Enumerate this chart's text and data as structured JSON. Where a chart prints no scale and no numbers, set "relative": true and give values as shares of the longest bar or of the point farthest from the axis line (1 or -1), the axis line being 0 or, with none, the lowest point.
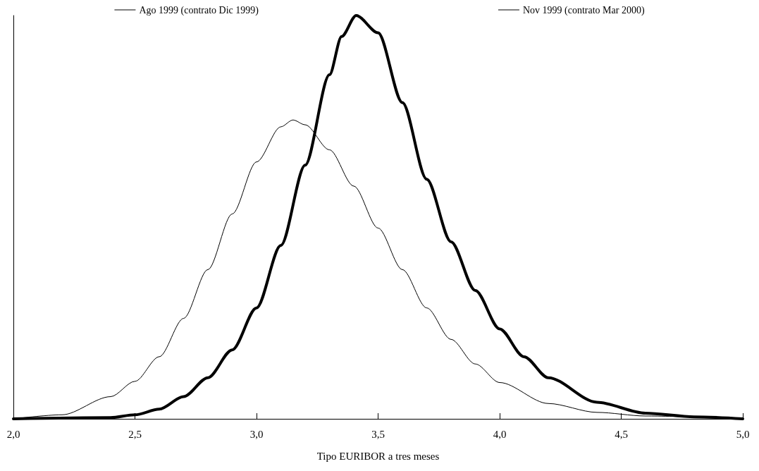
{
  "chart_data": {
    "type": "line",
    "xlabel": "Tipo EURIBOR a tres meses",
    "relative": true,
    "legend": "top",
    "grid": false,
    "marker": "none",
    "xlim": [
      2,
      5
    ],
    "xticks": [
      {
        "value": 2,
        "label": "2,0"
      },
      {
        "value": 2.5,
        "label": "2,5"
      },
      {
        "value": 3,
        "label": "3,0"
      },
      {
        "value": 3.5,
        "label": "3,5"
      },
      {
        "value": 4,
        "label": "4,0"
      },
      {
        "value": 4.5,
        "label": "4,5"
      },
      {
        "value": 5,
        "label": "5,0"
      }
    ],
    "series": [
      {
        "name": "Ago 1999 (contrato Dic 1999)",
        "color": "#000000",
        "x": [
          2.0,
          2.2,
          2.4,
          2.5,
          2.6,
          2.7,
          2.8,
          2.9,
          3.0,
          3.1,
          3.15,
          3.2,
          3.3,
          3.4,
          3.5,
          3.6,
          3.7,
          3.8,
          3.9,
          4.0,
          4.2,
          4.4,
          4.6,
          5.0
        ],
        "values": [
          0,
          0.01,
          0.055,
          0.093,
          0.154,
          0.249,
          0.37,
          0.508,
          0.637,
          0.724,
          0.741,
          0.729,
          0.667,
          0.577,
          0.473,
          0.37,
          0.275,
          0.197,
          0.136,
          0.09,
          0.038,
          0.016,
          0.007,
          0
        ]
      },
      {
        "name": "Nov 1999 (contrato Mar 2000)",
        "color": "#000000",
        "x": [
          2.0,
          2.4,
          2.5,
          2.6,
          2.7,
          2.8,
          2.9,
          3.0,
          3.1,
          3.2,
          3.3,
          3.35,
          3.41,
          3.5,
          3.6,
          3.7,
          3.8,
          3.9,
          4.0,
          4.1,
          4.2,
          4.4,
          4.6,
          4.8,
          5.0
        ],
        "values": [
          0,
          0.003,
          0.01,
          0.024,
          0.055,
          0.102,
          0.171,
          0.275,
          0.43,
          0.629,
          0.853,
          0.948,
          1,
          0.957,
          0.784,
          0.594,
          0.439,
          0.318,
          0.223,
          0.154,
          0.102,
          0.041,
          0.014,
          0.005,
          0
        ]
      }
    ]
  }
}
